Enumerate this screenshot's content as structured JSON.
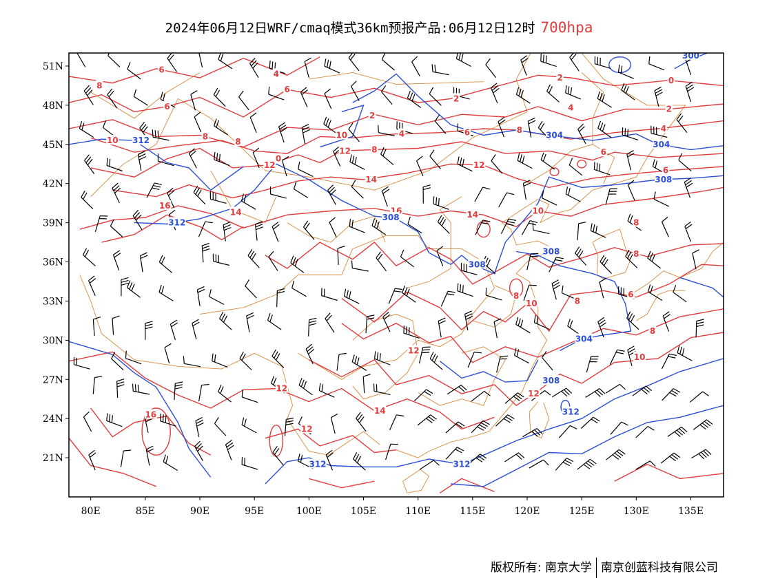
{
  "title": {
    "main": "2024年06月12日WRF/cmaq模式36km预报产品:06月12日12时",
    "level": "700hpa"
  },
  "axes": {
    "lat_labels": [
      "51N",
      "48N",
      "45N",
      "42N",
      "39N",
      "36N",
      "33N",
      "30N",
      "27N",
      "24N",
      "21N"
    ],
    "lon_labels": [
      "80E",
      "85E",
      "90E",
      "95E",
      "100E",
      "105E",
      "110E",
      "115E",
      "120E",
      "125E",
      "130E",
      "135E"
    ]
  },
  "colors": {
    "temperature": "#e03c3c",
    "height": "#2a4fd6",
    "boundary": "#d98a3a",
    "barb": "#000000"
  },
  "contour_labels": {
    "temperature": [
      {
        "text": "6",
        "lon": 86.5,
        "lat": 50.7
      },
      {
        "text": "8",
        "lon": 80.8,
        "lat": 49.5
      },
      {
        "text": "4",
        "lon": 97.0,
        "lat": 50.4
      },
      {
        "text": "6",
        "lon": 87.0,
        "lat": 47.9
      },
      {
        "text": "6",
        "lon": 98.0,
        "lat": 49.2
      },
      {
        "text": "2",
        "lon": 113.5,
        "lat": 48.5
      },
      {
        "text": "2",
        "lon": 105.8,
        "lat": 47.2
      },
      {
        "text": "8",
        "lon": 90.5,
        "lat": 45.6
      },
      {
        "text": "8",
        "lon": 93.5,
        "lat": 45.2
      },
      {
        "text": "10",
        "lon": 82.0,
        "lat": 45.3
      },
      {
        "text": "10",
        "lon": 103.0,
        "lat": 45.7
      },
      {
        "text": "4",
        "lon": 108.5,
        "lat": 45.8
      },
      {
        "text": "6",
        "lon": 114.5,
        "lat": 45.9
      },
      {
        "text": "8",
        "lon": 119.3,
        "lat": 46.1
      },
      {
        "text": "12",
        "lon": 103.3,
        "lat": 44.5
      },
      {
        "text": "8",
        "lon": 106.0,
        "lat": 44.6
      },
      {
        "text": "12",
        "lon": 96.4,
        "lat": 43.4
      },
      {
        "text": "0",
        "lon": 97.2,
        "lat": 43.9
      },
      {
        "text": "2",
        "lon": 123.0,
        "lat": 50.1
      },
      {
        "text": "4",
        "lon": 124.0,
        "lat": 47.8
      },
      {
        "text": "0",
        "lon": 133.2,
        "lat": 49.9
      },
      {
        "text": "2",
        "lon": 133.0,
        "lat": 47.7
      },
      {
        "text": "4",
        "lon": 132.5,
        "lat": 46.2
      },
      {
        "text": "6",
        "lon": 127.0,
        "lat": 44.4
      },
      {
        "text": "12",
        "lon": 115.6,
        "lat": 43.4
      },
      {
        "text": "6",
        "lon": 132.7,
        "lat": 43.0
      },
      {
        "text": "14",
        "lon": 105.7,
        "lat": 42.3
      },
      {
        "text": "16",
        "lon": 86.8,
        "lat": 40.3
      },
      {
        "text": "14",
        "lon": 93.3,
        "lat": 39.8
      },
      {
        "text": "16",
        "lon": 108.0,
        "lat": 39.9
      },
      {
        "text": "14",
        "lon": 115.0,
        "lat": 39.6
      },
      {
        "text": "10",
        "lon": 121.0,
        "lat": 39.9
      },
      {
        "text": "8",
        "lon": 130.0,
        "lat": 39.0
      },
      {
        "text": "8",
        "lon": 130.0,
        "lat": 36.6
      },
      {
        "text": "8",
        "lon": 119.0,
        "lat": 33.4
      },
      {
        "text": "10",
        "lon": 120.4,
        "lat": 32.8
      },
      {
        "text": "8",
        "lon": 124.6,
        "lat": 33.0
      },
      {
        "text": "6",
        "lon": 129.5,
        "lat": 33.5
      },
      {
        "text": "8",
        "lon": 131.5,
        "lat": 30.7
      },
      {
        "text": "10",
        "lon": 130.3,
        "lat": 28.7
      },
      {
        "text": "12",
        "lon": 109.6,
        "lat": 29.2
      },
      {
        "text": "12",
        "lon": 97.5,
        "lat": 26.3
      },
      {
        "text": "12",
        "lon": 120.6,
        "lat": 25.9
      },
      {
        "text": "14",
        "lon": 106.5,
        "lat": 24.6
      },
      {
        "text": "16",
        "lon": 85.5,
        "lat": 24.3
      },
      {
        "text": "12",
        "lon": 99.8,
        "lat": 23.2
      }
    ],
    "height": [
      {
        "text": "312",
        "lon": 84.6,
        "lat": 45.3
      },
      {
        "text": "304",
        "lon": 122.5,
        "lat": 45.7
      },
      {
        "text": "304",
        "lon": 132.3,
        "lat": 45.0
      },
      {
        "text": "308",
        "lon": 132.5,
        "lat": 42.3
      },
      {
        "text": "308",
        "lon": 107.5,
        "lat": 39.4
      },
      {
        "text": "312",
        "lon": 87.9,
        "lat": 39.0
      },
      {
        "text": "308",
        "lon": 122.2,
        "lat": 36.8
      },
      {
        "text": "308",
        "lon": 115.4,
        "lat": 35.8
      },
      {
        "text": "304",
        "lon": 125.2,
        "lat": 30.1
      },
      {
        "text": "308",
        "lon": 122.2,
        "lat": 26.9
      },
      {
        "text": "312",
        "lon": 124.0,
        "lat": 24.5
      },
      {
        "text": "312",
        "lon": 100.8,
        "lat": 20.5
      },
      {
        "text": "312",
        "lon": 114.0,
        "lat": 20.5
      },
      {
        "text": "300",
        "lon": 135.0,
        "lat": 51.8
      }
    ]
  },
  "footer": {
    "left": "版权所有: 南京大学",
    "right": "南京创蓝科技有限公司"
  }
}
